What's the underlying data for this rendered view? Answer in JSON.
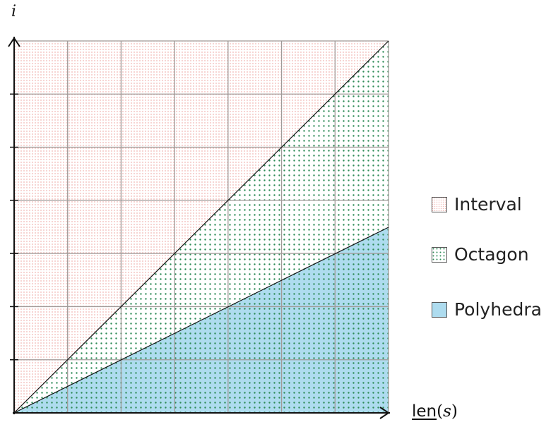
{
  "axes": {
    "y_var": "i",
    "x_fn": "len",
    "x_open": "(",
    "x_arg": "s",
    "x_close": ")"
  },
  "legend": [
    {
      "label": "Interval",
      "pattern": "pink-dots"
    },
    {
      "label": "Octagon",
      "pattern": "green-dots"
    },
    {
      "label": "Polyhedra",
      "pattern": "blue-fill"
    }
  ],
  "colors": {
    "interval_dot": "#f2b8b4",
    "octagon_dot": "#2e8b57",
    "polyhedra_fill": "#aedcef",
    "grid": "#a09a98",
    "axis": "#111111"
  },
  "grid": {
    "divisions": 7,
    "visible": true
  }
}
